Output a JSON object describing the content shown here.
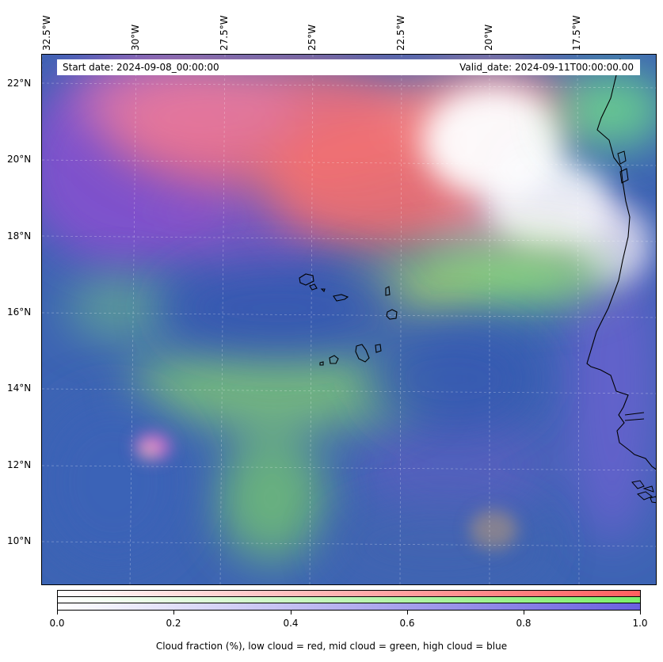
{
  "map": {
    "longitude_labels": [
      {
        "text": "32.5°W"
      },
      {
        "text": "30°W"
      },
      {
        "text": "27.5°W"
      },
      {
        "text": "25°W"
      },
      {
        "text": "22.5°W"
      },
      {
        "text": "20°W"
      },
      {
        "text": "17.5°W"
      }
    ],
    "latitude_labels": [
      {
        "text": "22°N"
      },
      {
        "text": "20°N"
      },
      {
        "text": "18°N"
      },
      {
        "text": "16°N"
      },
      {
        "text": "14°N"
      },
      {
        "text": "12°N"
      },
      {
        "text": "10°N"
      }
    ],
    "start_date_text": "Start date: 2024-09-08_00:00:00",
    "valid_date_text": "Valid_date: 2024-09-11T00:00:00.00",
    "colors": {
      "low_cloud": "#ff6b6b",
      "mid_cloud": "#7cf06a",
      "high_cloud": "#6a5fe0",
      "background": "#3d64b4"
    }
  },
  "colorbar": {
    "ticks": [
      "0.0",
      "0.2",
      "0.4",
      "0.6",
      "0.8",
      "1.0"
    ],
    "label": "Cloud fraction (%), low cloud = red, mid cloud = green, high cloud = blue"
  }
}
